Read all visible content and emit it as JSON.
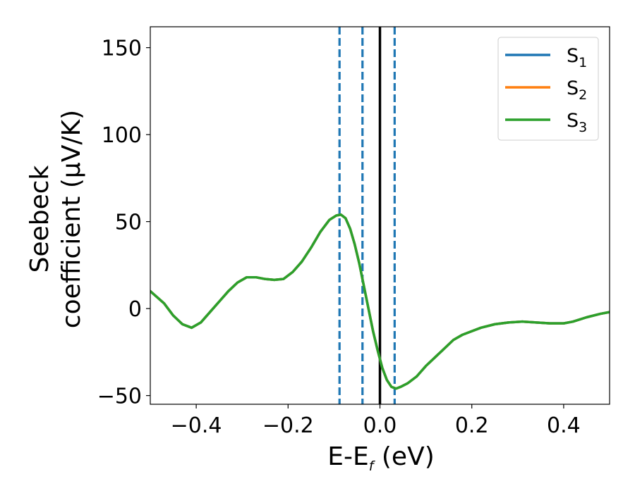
{
  "chart_data": {
    "type": "line",
    "xlabel_main": "E-E",
    "xlabel_sub": "f",
    "xlabel_tail": " (eV)",
    "ylabel_line1": "Seebeck",
    "ylabel_line2": "coefficient  (μV/K)",
    "xlim": [
      -0.5,
      0.5
    ],
    "ylim": [
      -55,
      162
    ],
    "xticks": [
      -0.4,
      -0.2,
      0.0,
      0.2,
      0.4
    ],
    "xtick_labels": [
      "−0.4",
      "−0.2",
      "0.0",
      "0.2",
      "0.4"
    ],
    "yticks": [
      -50,
      0,
      50,
      100,
      150
    ],
    "ytick_labels": [
      "−50",
      "0",
      "50",
      "100",
      "150"
    ],
    "grid": false,
    "legend_position": "top-right",
    "series": [
      {
        "name": "S",
        "subscript": "1",
        "color": "#1f77b4",
        "x": [
          -0.5,
          -0.47,
          -0.45,
          -0.43,
          -0.41,
          -0.39,
          -0.37,
          -0.35,
          -0.33,
          -0.31,
          -0.29,
          -0.27,
          -0.25,
          -0.23,
          -0.21,
          -0.19,
          -0.17,
          -0.15,
          -0.13,
          -0.11,
          -0.095,
          -0.085,
          -0.075,
          -0.065,
          -0.055,
          -0.045,
          -0.035,
          -0.025,
          -0.015,
          -0.005,
          0.005,
          0.015,
          0.025,
          0.035,
          0.045,
          0.06,
          0.08,
          0.1,
          0.12,
          0.14,
          0.16,
          0.18,
          0.2,
          0.22,
          0.25,
          0.28,
          0.31,
          0.34,
          0.37,
          0.4,
          0.42,
          0.45,
          0.48,
          0.5
        ],
        "y": [
          10,
          3,
          -4,
          -9,
          -11,
          -8,
          -2,
          4,
          10,
          15,
          18,
          18,
          17,
          16.5,
          17,
          21,
          27,
          35,
          44,
          51,
          53.5,
          54,
          52,
          46,
          37,
          26,
          13,
          0,
          -13,
          -24,
          -34,
          -41,
          -45,
          -46,
          -45,
          -43,
          -39,
          -33,
          -28,
          -23,
          -18,
          -15,
          -13,
          -11,
          -9,
          -8,
          -7.5,
          -8,
          -8.5,
          -8.5,
          -7.5,
          -5,
          -3,
          -2
        ]
      },
      {
        "name": "S",
        "subscript": "2",
        "color": "#ff7f0e",
        "x": [
          -0.5,
          -0.47,
          -0.45,
          -0.43,
          -0.41,
          -0.39,
          -0.37,
          -0.35,
          -0.33,
          -0.31,
          -0.29,
          -0.27,
          -0.25,
          -0.23,
          -0.21,
          -0.19,
          -0.17,
          -0.15,
          -0.13,
          -0.11,
          -0.095,
          -0.085,
          -0.075,
          -0.065,
          -0.055,
          -0.045,
          -0.035,
          -0.025,
          -0.015,
          -0.005,
          0.005,
          0.015,
          0.025,
          0.035,
          0.045,
          0.06,
          0.08,
          0.1,
          0.12,
          0.14,
          0.16,
          0.18,
          0.2,
          0.22,
          0.25,
          0.28,
          0.31,
          0.34,
          0.37,
          0.4,
          0.42,
          0.45,
          0.48,
          0.5
        ],
        "y": [
          10,
          3,
          -4,
          -9,
          -11,
          -8,
          -2,
          4,
          10,
          15,
          18,
          18,
          17,
          16.5,
          17,
          21,
          27,
          35,
          44,
          51,
          53.5,
          54,
          52,
          46,
          37,
          26,
          13,
          0,
          -13,
          -24,
          -34,
          -41,
          -45,
          -46,
          -45,
          -43,
          -39,
          -33,
          -28,
          -23,
          -18,
          -15,
          -13,
          -11,
          -9,
          -8,
          -7.5,
          -8,
          -8.5,
          -8.5,
          -7.5,
          -5,
          -3,
          -2
        ]
      },
      {
        "name": "S",
        "subscript": "3",
        "color": "#2ca02c",
        "x": [
          -0.5,
          -0.47,
          -0.45,
          -0.43,
          -0.41,
          -0.39,
          -0.37,
          -0.35,
          -0.33,
          -0.31,
          -0.29,
          -0.27,
          -0.25,
          -0.23,
          -0.21,
          -0.19,
          -0.17,
          -0.15,
          -0.13,
          -0.11,
          -0.095,
          -0.085,
          -0.075,
          -0.065,
          -0.055,
          -0.045,
          -0.035,
          -0.025,
          -0.015,
          -0.005,
          0.005,
          0.015,
          0.025,
          0.035,
          0.045,
          0.06,
          0.08,
          0.1,
          0.12,
          0.14,
          0.16,
          0.18,
          0.2,
          0.22,
          0.25,
          0.28,
          0.31,
          0.34,
          0.37,
          0.4,
          0.42,
          0.45,
          0.48,
          0.5
        ],
        "y": [
          10,
          3,
          -4,
          -9,
          -11,
          -8,
          -2,
          4,
          10,
          15,
          18,
          18,
          17,
          16.5,
          17,
          21,
          27,
          35,
          44,
          51,
          53.5,
          54,
          52,
          46,
          37,
          26,
          13,
          0,
          -13,
          -24,
          -34,
          -41,
          -45,
          -46,
          -45,
          -43,
          -39,
          -33,
          -28,
          -23,
          -18,
          -15,
          -13,
          -11,
          -9,
          -8,
          -7.5,
          -8,
          -8.5,
          -8.5,
          -7.5,
          -5,
          -3,
          -2
        ]
      }
    ],
    "vertical_lines": [
      {
        "x": -0.088,
        "style": "dashed",
        "color": "#1f77b4"
      },
      {
        "x": -0.038,
        "style": "dashed",
        "color": "#1f77b4"
      },
      {
        "x": 0.0,
        "style": "solid",
        "color": "#000000"
      },
      {
        "x": 0.032,
        "style": "dashed",
        "color": "#1f77b4"
      }
    ]
  }
}
